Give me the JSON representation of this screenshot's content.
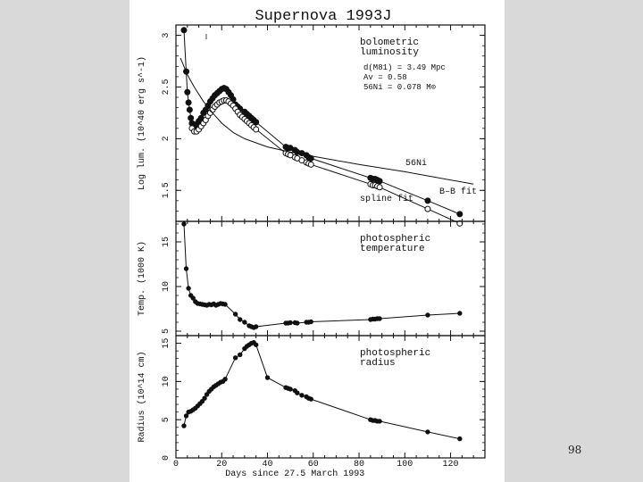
{
  "figure_title": "Supernova 1993J",
  "page_number": "98",
  "chart_data": [
    {
      "type": "line",
      "name": "bolometric-luminosity",
      "ylabel": "Log lum. (10^40 erg s^-1)",
      "ylim": [
        1.2,
        3.1
      ],
      "yticks": [
        "1.5",
        "2",
        "2.5",
        "3"
      ],
      "annotation_title": [
        "bolometric",
        "luminosity"
      ],
      "params": [
        "d(M81) = 3.49 Mpc",
        "Av = 0.58",
        "56Ni = 0.078 M⊙"
      ],
      "curve_labels": {
        "ni": "56Ni",
        "bb": "B–B fit",
        "spline": "spline fit"
      },
      "series": [
        {
          "name": "B-B fit (filled)",
          "x": [
            3.5,
            4.5,
            5,
            5.5,
            6,
            6.5,
            7,
            7.5,
            8,
            9,
            10,
            11,
            12,
            13,
            14,
            15,
            16,
            17,
            18,
            19,
            20,
            21,
            22,
            23,
            24,
            25,
            26,
            27,
            28,
            30,
            31,
            32,
            33,
            34,
            35,
            48,
            49,
            50,
            52,
            53,
            55,
            57,
            58,
            59,
            85,
            86,
            87,
            88,
            89,
            110,
            124
          ],
          "y": [
            3.05,
            2.65,
            2.45,
            2.35,
            2.28,
            2.2,
            2.15,
            2.13,
            2.12,
            2.14,
            2.17,
            2.2,
            2.25,
            2.28,
            2.32,
            2.36,
            2.39,
            2.42,
            2.44,
            2.46,
            2.48,
            2.49,
            2.48,
            2.45,
            2.42,
            2.38,
            2.33,
            2.31,
            2.29,
            2.26,
            2.24,
            2.22,
            2.2,
            2.18,
            2.16,
            1.92,
            1.91,
            1.91,
            1.89,
            1.87,
            1.86,
            1.84,
            1.82,
            1.81,
            1.62,
            1.61,
            1.61,
            1.6,
            1.59,
            1.4,
            1.27
          ]
        },
        {
          "name": "spline fit (open)",
          "x": [
            7,
            8,
            9,
            10,
            11,
            12,
            13,
            14,
            15,
            16,
            17,
            18,
            19,
            20,
            21,
            22,
            23,
            24,
            25,
            26,
            27,
            28,
            29,
            30,
            31,
            32,
            33,
            34,
            35,
            48,
            49,
            50,
            52,
            53,
            55,
            57,
            58,
            59,
            85,
            86,
            87,
            88,
            89,
            110,
            124
          ],
          "y": [
            2.1,
            2.07,
            2.07,
            2.09,
            2.12,
            2.15,
            2.18,
            2.22,
            2.25,
            2.28,
            2.31,
            2.33,
            2.35,
            2.36,
            2.37,
            2.37,
            2.36,
            2.34,
            2.32,
            2.29,
            2.26,
            2.23,
            2.21,
            2.19,
            2.17,
            2.15,
            2.13,
            2.11,
            2.09,
            1.86,
            1.85,
            1.84,
            1.82,
            1.81,
            1.79,
            1.77,
            1.76,
            1.75,
            1.56,
            1.55,
            1.55,
            1.54,
            1.53,
            1.32,
            1.18
          ]
        },
        {
          "name": "56Ni",
          "x": [
            2,
            5,
            8,
            12,
            16,
            20,
            25,
            30,
            40,
            50,
            60,
            80,
            100,
            130
          ],
          "y": [
            2.78,
            2.62,
            2.5,
            2.36,
            2.25,
            2.15,
            2.06,
            2,
            1.92,
            1.87,
            1.83,
            1.75,
            1.68,
            1.56
          ]
        }
      ]
    },
    {
      "type": "line",
      "name": "photospheric-temperature",
      "ylabel": "Temp. (1000 K)",
      "ylim": [
        4.5,
        17.3
      ],
      "yticks": [
        "5",
        "10",
        "15"
      ],
      "annotation_title": [
        "photospheric",
        "temperature"
      ],
      "series": [
        {
          "name": "temperature",
          "x": [
            3.5,
            4.5,
            5.5,
            6.5,
            7.5,
            8.5,
            9.5,
            10.5,
            11.5,
            12.5,
            13.5,
            14.5,
            15.5,
            16.5,
            17.5,
            18.5,
            19.5,
            20.5,
            21.5,
            26,
            28,
            30,
            32,
            33,
            34,
            35,
            48,
            49,
            50,
            52,
            53,
            57,
            58,
            59,
            85,
            86,
            87,
            88,
            89,
            110,
            124
          ],
          "y": [
            17,
            12,
            9.8,
            9,
            8.7,
            8.3,
            8.1,
            8.05,
            8,
            7.95,
            7.9,
            8,
            7.95,
            8.05,
            7.9,
            8,
            8.1,
            8.05,
            8,
            6.9,
            6.3,
            6,
            5.6,
            5.5,
            5.4,
            5.5,
            5.9,
            5.9,
            5.95,
            5.95,
            5.9,
            6,
            6,
            6.05,
            6.3,
            6.35,
            6.35,
            6.4,
            6.4,
            6.8,
            7
          ]
        }
      ]
    },
    {
      "type": "line",
      "name": "photospheric-radius",
      "ylabel": "Radius (10^14 cm)",
      "xlabel": "Days since 27.5 March 1993",
      "xlim": [
        0,
        135
      ],
      "ylim": [
        0,
        16
      ],
      "xticks": [
        "0",
        "20",
        "40",
        "60",
        "80",
        "100",
        "120"
      ],
      "yticks": [
        "0",
        "5",
        "10",
        "15"
      ],
      "annotation_title": [
        "photospheric",
        "radius"
      ],
      "series": [
        {
          "name": "radius",
          "x": [
            3.5,
            4.5,
            5.5,
            6.5,
            7.5,
            8.5,
            9.5,
            10.5,
            11.5,
            12.5,
            13.5,
            14.5,
            15.5,
            16.5,
            17.5,
            18.5,
            19.5,
            20.5,
            21.5,
            26,
            28,
            30,
            31,
            32,
            33,
            34,
            35,
            40,
            48,
            49,
            50,
            52,
            53,
            55,
            57,
            58,
            59,
            85,
            86,
            87,
            88,
            89,
            110,
            124
          ],
          "y": [
            4.2,
            5.5,
            6,
            6.1,
            6.3,
            6.5,
            6.8,
            7.1,
            7.4,
            7.8,
            8.3,
            8.7,
            9,
            9.3,
            9.5,
            9.7,
            9.9,
            10,
            10.3,
            13.1,
            13.5,
            14.3,
            14.6,
            14.8,
            15,
            15.1,
            14.8,
            10.5,
            9.2,
            9.1,
            9,
            8.8,
            8.5,
            8.2,
            8,
            7.8,
            7.7,
            5,
            4.9,
            4.9,
            4.8,
            4.8,
            3.4,
            2.5
          ]
        }
      ]
    }
  ]
}
